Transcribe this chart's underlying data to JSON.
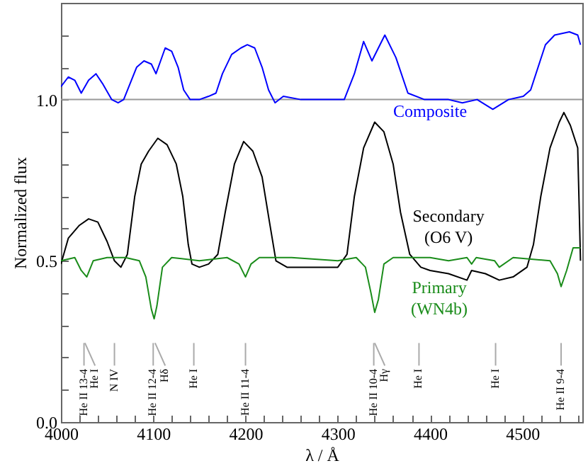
{
  "chart_data": {
    "type": "line",
    "xlabel": "λ / Å",
    "ylabel": "Normalized flux",
    "xlim": [
      4000,
      4565
    ],
    "ylim": [
      0,
      1.3
    ],
    "xticks": [
      4000,
      {
        "value": 4020,
        "label": null
      },
      {
        "value": 4040,
        "label": null
      },
      {
        "value": 4060,
        "label": null
      },
      {
        "value": 4080,
        "label": null
      },
      4100,
      {
        "value": 4120,
        "label": null
      },
      {
        "value": 4140,
        "label": null
      },
      {
        "value": 4160,
        "label": null
      },
      {
        "value": 4180,
        "label": null
      },
      4200,
      {
        "value": 4220,
        "label": null
      },
      {
        "value": 4240,
        "label": null
      },
      {
        "value": 4260,
        "label": null
      },
      {
        "value": 4280,
        "label": null
      },
      4300,
      {
        "value": 4320,
        "label": null
      },
      {
        "value": 4340,
        "label": null
      },
      {
        "value": 4360,
        "label": null
      },
      {
        "value": 4380,
        "label": null
      },
      4400,
      {
        "value": 4420,
        "label": null
      },
      {
        "value": 4440,
        "label": null
      },
      {
        "value": 4460,
        "label": null
      },
      {
        "value": 4480,
        "label": null
      },
      4500,
      {
        "value": 4520,
        "label": null
      },
      {
        "value": 4540,
        "label": null
      },
      {
        "value": 4560,
        "label": null
      }
    ],
    "yticks": [
      {
        "value": 0,
        "label": "0.0"
      },
      {
        "value": 0.1,
        "label": null
      },
      {
        "value": 0.2,
        "label": null
      },
      {
        "value": 0.3,
        "label": null
      },
      {
        "value": 0.4,
        "label": null
      },
      {
        "value": 0.5,
        "label": "0.5"
      },
      {
        "value": 0.6,
        "label": null
      },
      {
        "value": 0.7,
        "label": null
      },
      {
        "value": 0.8,
        "label": null
      },
      {
        "value": 0.9,
        "label": null
      },
      {
        "value": 1.0,
        "label": "1.0"
      },
      {
        "value": 1.1,
        "label": null
      },
      {
        "value": 1.2,
        "label": null
      },
      {
        "value": 1.3,
        "label": null
      }
    ],
    "grid": false,
    "marker": "none",
    "line_style": "solid",
    "ref_lines": [
      {
        "axis": "y",
        "value": 1.0,
        "color": "#999999"
      }
    ],
    "series": [
      {
        "name": "Composite",
        "color": "#0000ff",
        "x": [
          4000,
          4008,
          4015,
          4022,
          4030,
          4038,
          4045,
          4055,
          4062,
          4068,
          4075,
          4082,
          4090,
          4098,
          4103,
          4108,
          4113,
          4120,
          4127,
          4133,
          4140,
          4150,
          4160,
          4168,
          4175,
          4185,
          4195,
          4202,
          4210,
          4218,
          4225,
          4232,
          4241,
          4260,
          4280,
          4307,
          4318,
          4328,
          4337,
          4351,
          4363,
          4376,
          4394,
          4420,
          4435,
          4451,
          4468,
          4485,
          4501,
          4509,
          4525,
          4535,
          4551,
          4560,
          4563
        ],
        "values": [
          1.04,
          1.07,
          1.06,
          1.02,
          1.06,
          1.08,
          1.05,
          1.0,
          0.99,
          1.0,
          1.05,
          1.1,
          1.12,
          1.11,
          1.08,
          1.12,
          1.16,
          1.15,
          1.1,
          1.03,
          1.0,
          1.0,
          1.01,
          1.02,
          1.08,
          1.14,
          1.16,
          1.17,
          1.16,
          1.1,
          1.03,
          0.99,
          1.01,
          1.0,
          1.0,
          1.0,
          1.08,
          1.18,
          1.12,
          1.2,
          1.13,
          1.02,
          1.0,
          1.0,
          0.99,
          1.0,
          0.97,
          1.0,
          1.01,
          1.03,
          1.17,
          1.2,
          1.21,
          1.2,
          1.17
        ]
      },
      {
        "name": "Secondary (O6 V)",
        "color": "#000000",
        "x": [
          4000,
          4008,
          4020,
          4030,
          4040,
          4050,
          4058,
          4065,
          4072,
          4080,
          4087,
          4095,
          4105,
          4115,
          4125,
          4132,
          4138,
          4142,
          4150,
          4160,
          4170,
          4178,
          4188,
          4198,
          4208,
          4218,
          4226,
          4233,
          4245,
          4260,
          4280,
          4300,
          4310,
          4318,
          4328,
          4340,
          4350,
          4360,
          4368,
          4378,
          4390,
          4400,
          4420,
          4440,
          4445,
          4460,
          4475,
          4490,
          4505,
          4512,
          4520,
          4530,
          4540,
          4545,
          4552,
          4560,
          4563
        ],
        "values": [
          0.49,
          0.57,
          0.61,
          0.63,
          0.62,
          0.56,
          0.5,
          0.48,
          0.52,
          0.7,
          0.8,
          0.84,
          0.88,
          0.86,
          0.8,
          0.7,
          0.55,
          0.49,
          0.48,
          0.49,
          0.52,
          0.65,
          0.8,
          0.87,
          0.84,
          0.76,
          0.62,
          0.5,
          0.48,
          0.48,
          0.48,
          0.48,
          0.52,
          0.7,
          0.85,
          0.93,
          0.9,
          0.8,
          0.65,
          0.52,
          0.48,
          0.47,
          0.46,
          0.44,
          0.47,
          0.46,
          0.44,
          0.45,
          0.48,
          0.55,
          0.7,
          0.85,
          0.93,
          0.96,
          0.92,
          0.85,
          0.5
        ]
      },
      {
        "name": "Primary (WN4b)",
        "color": "#1a8c1a",
        "x": [
          4000,
          4015,
          4022,
          4028,
          4035,
          4050,
          4070,
          4085,
          4092,
          4098,
          4101,
          4104,
          4110,
          4120,
          4150,
          4180,
          4193,
          4200,
          4206,
          4215,
          4250,
          4300,
          4320,
          4330,
          4336,
          4340,
          4344,
          4350,
          4360,
          4400,
          4420,
          4440,
          4445,
          4450,
          4470,
          4475,
          4490,
          4530,
          4538,
          4542,
          4548,
          4555,
          4563
        ],
        "values": [
          0.5,
          0.51,
          0.47,
          0.45,
          0.5,
          0.51,
          0.51,
          0.5,
          0.45,
          0.35,
          0.32,
          0.36,
          0.48,
          0.51,
          0.5,
          0.51,
          0.49,
          0.45,
          0.49,
          0.51,
          0.51,
          0.5,
          0.51,
          0.48,
          0.4,
          0.34,
          0.38,
          0.49,
          0.51,
          0.51,
          0.5,
          0.51,
          0.49,
          0.51,
          0.5,
          0.48,
          0.51,
          0.5,
          0.46,
          0.42,
          0.47,
          0.54,
          0.54
        ]
      }
    ],
    "annotations": [
      {
        "text": "He II 13-4",
        "x": 4025
      },
      {
        "text": "He I",
        "x": 4026
      },
      {
        "text": "N IV",
        "x": 4058
      },
      {
        "text": "He II 12-4",
        "x": 4100
      },
      {
        "text": "Hδ",
        "x": 4102
      },
      {
        "text": "He I",
        "x": 4144
      },
      {
        "text": "He II 11-4",
        "x": 4200
      },
      {
        "text": "He II 10-4",
        "x": 4339
      },
      {
        "text": "Hγ",
        "x": 4340
      },
      {
        "text": "He I",
        "x": 4388
      },
      {
        "text": "He I",
        "x": 4471
      },
      {
        "text": "He II 9-4",
        "x": 4542
      }
    ]
  }
}
